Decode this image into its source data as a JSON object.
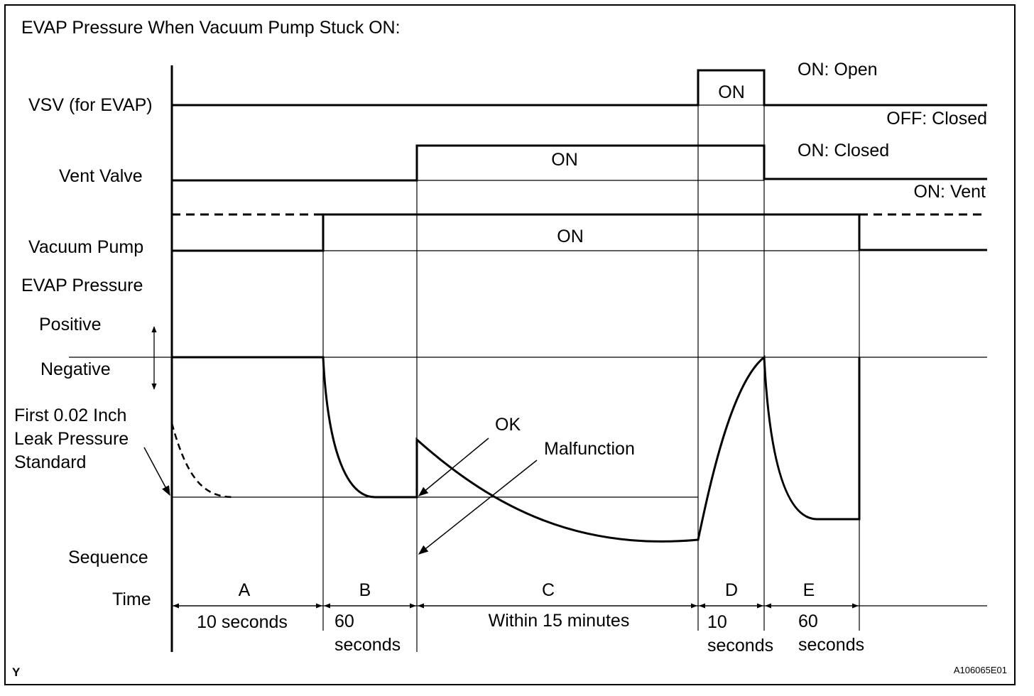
{
  "title": "EVAP Pressure When Vacuum Pump Stuck ON:",
  "signals": {
    "vsv": {
      "label": "VSV (for EVAP)",
      "on_text": "ON",
      "state_high": "ON: Open",
      "state_low": "OFF: Closed"
    },
    "vent": {
      "label": "Vent Valve",
      "on_text": "ON",
      "state_high": "ON: Closed",
      "state_low": "ON: Vent"
    },
    "pump": {
      "label": "Vacuum Pump",
      "on_text": "ON"
    }
  },
  "pressure": {
    "label": "EVAP Pressure",
    "positive": "Positive",
    "negative": "Negative",
    "standard_label_1": "First 0.02 Inch",
    "standard_label_2": "Leak Pressure",
    "standard_label_3": "Standard",
    "ok": "OK",
    "malfunction": "Malfunction"
  },
  "sequence_label": "Sequence",
  "time_label": "Time",
  "phases": [
    {
      "letter": "A",
      "duration_1": "10 seconds",
      "duration_2": ""
    },
    {
      "letter": "B",
      "duration_1": "60",
      "duration_2": "seconds"
    },
    {
      "letter": "C",
      "duration_1": "Within 15 minutes",
      "duration_2": ""
    },
    {
      "letter": "D",
      "duration_1": "10",
      "duration_2": "seconds"
    },
    {
      "letter": "E",
      "duration_1": "60",
      "duration_2": "seconds"
    }
  ],
  "footer": {
    "corner_mark": "Y",
    "figure_id": "A106065E01"
  }
}
